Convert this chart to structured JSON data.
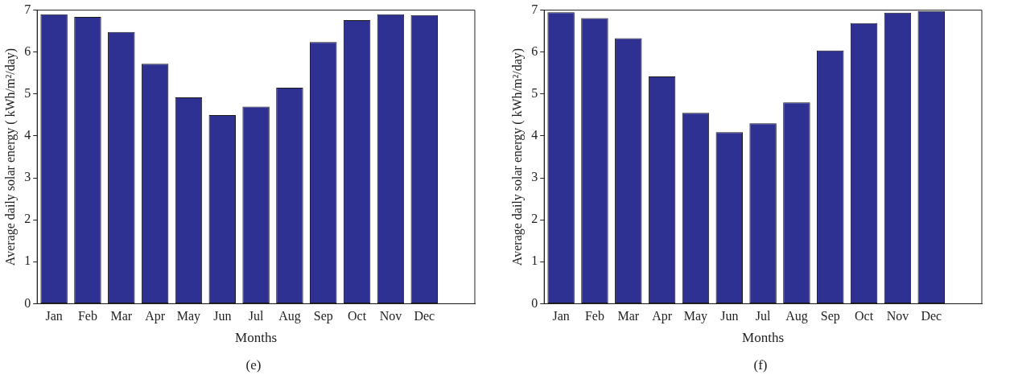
{
  "chart_data": [
    {
      "type": "bar",
      "xlabel": "Months",
      "ylabel": "Average daily solar energy ( kWh/m²/day)",
      "categories": [
        "Jan",
        "Feb",
        "Mar",
        "Apr",
        "May",
        "Jun",
        "Jul",
        "Aug",
        "Sep",
        "Oct",
        "Nov",
        "Dec",
        null
      ],
      "color": "#2e3192",
      "values": [
        6.9,
        6.84,
        6.48,
        5.72,
        4.92,
        4.5,
        4.7,
        5.15,
        6.24,
        6.76,
        6.9,
        6.88,
        null
      ],
      "ylim": [
        0,
        7
      ],
      "yticks": [
        0,
        1,
        2,
        3,
        4,
        5,
        6,
        7
      ],
      "grid": false,
      "legend": false,
      "annotations": [
        "(e)"
      ]
    },
    {
      "type": "bar",
      "xlabel": "Months",
      "ylabel": "Average daily solar energy ( kWh/m²/day)",
      "categories": [
        "Jan",
        "Feb",
        "Mar",
        "Apr",
        "May",
        "Jun",
        "Jul",
        "Aug",
        "Sep",
        "Oct",
        "Nov",
        "Dec",
        null
      ],
      "color": "#2e3192",
      "values": [
        6.95,
        6.81,
        6.33,
        5.42,
        4.55,
        4.09,
        4.3,
        4.8,
        6.04,
        6.69,
        6.94,
        6.98,
        null
      ],
      "ylim": [
        0,
        7
      ],
      "yticks": [
        0,
        1,
        2,
        3,
        4,
        5,
        6,
        7
      ],
      "grid": false,
      "legend": false,
      "annotations": [
        "(f)"
      ]
    }
  ]
}
